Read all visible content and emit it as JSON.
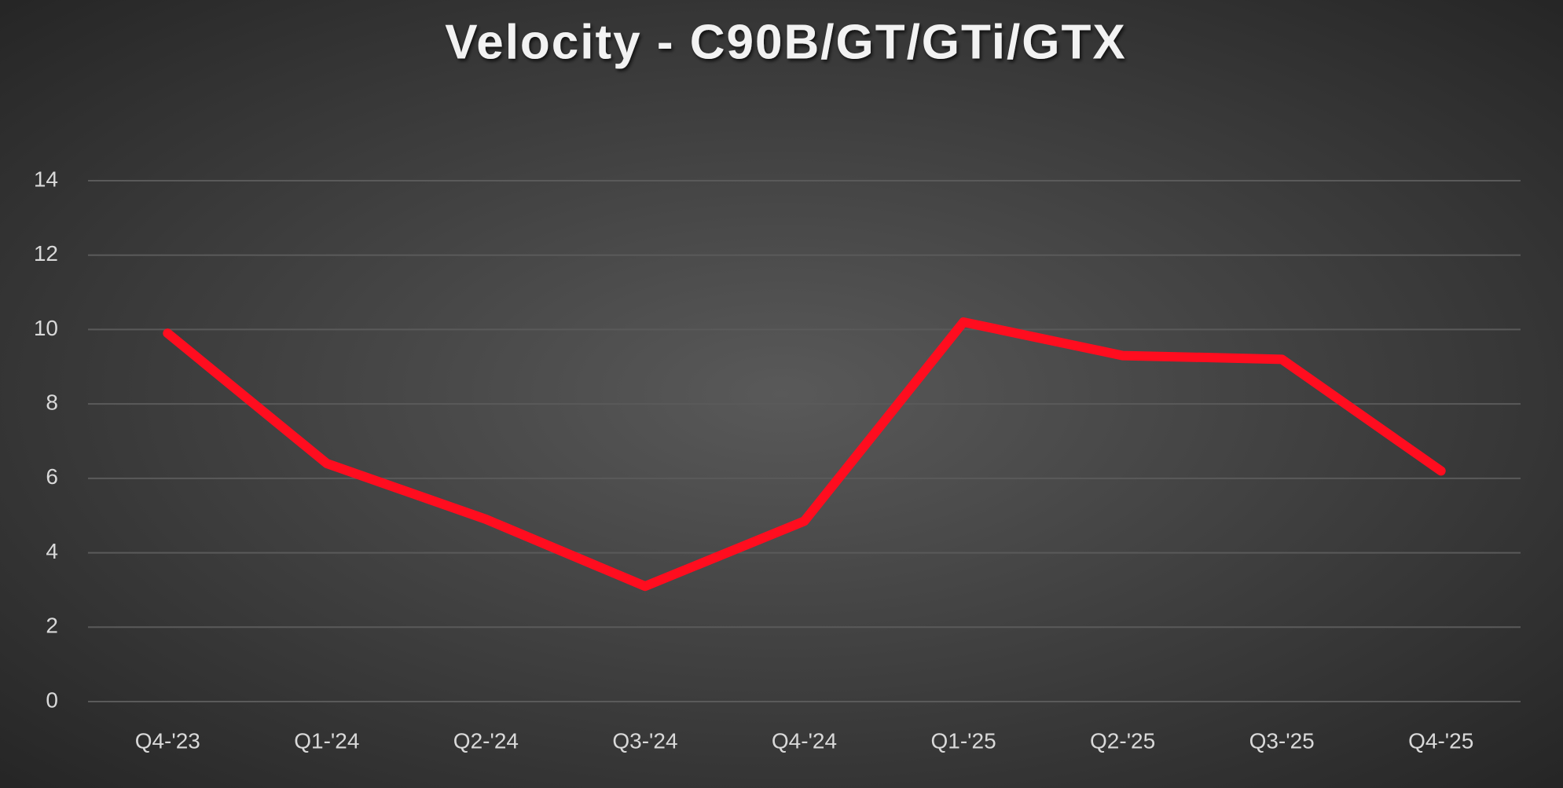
{
  "chart_data": {
    "type": "line",
    "title": "Velocity - C90B/GT/GTi/GTX",
    "categories": [
      "Q4-'23",
      "Q1-'24",
      "Q2-'24",
      "Q3-'24",
      "Q4-'24",
      "Q1-'25",
      "Q2-'25",
      "Q3-'25",
      "Q4-'25"
    ],
    "values": [
      9.9,
      6.4,
      4.9,
      3.1,
      4.85,
      10.2,
      9.3,
      9.2,
      6.2
    ],
    "color": "#ff0d1f",
    "ylim": [
      0,
      14
    ],
    "yticks": [
      0,
      2,
      4,
      6,
      8,
      10,
      12,
      14
    ],
    "grid": true
  }
}
